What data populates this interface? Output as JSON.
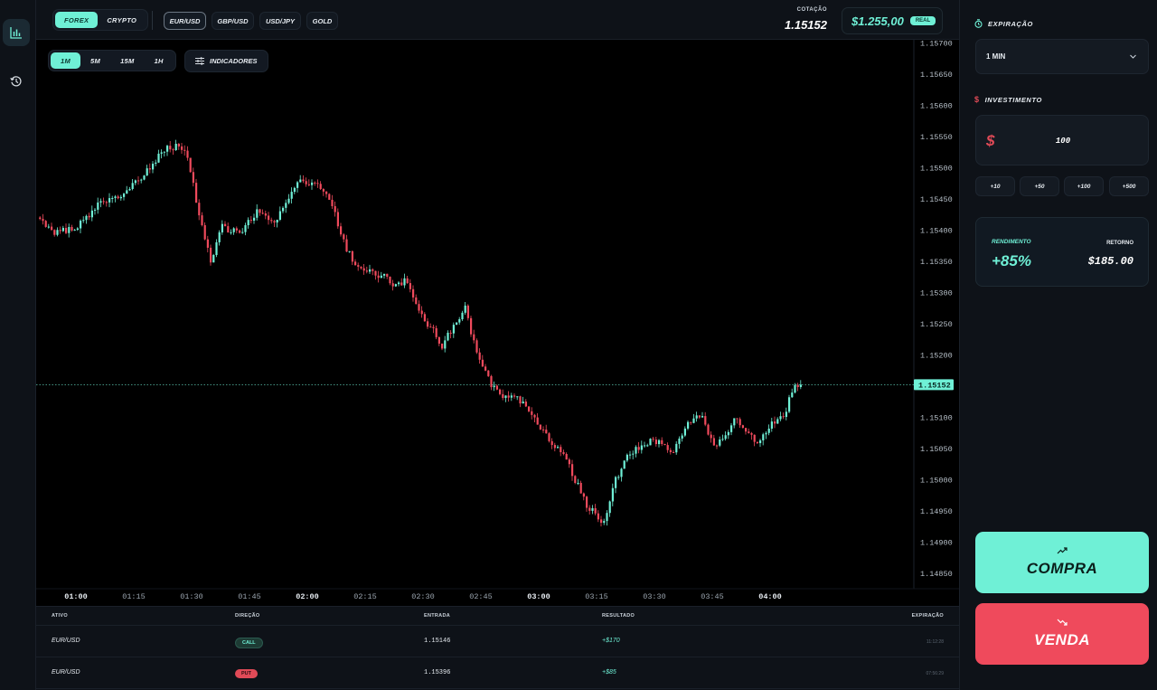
{
  "market_tabs": [
    {
      "label": "FOREX",
      "active": true
    },
    {
      "label": "CRYPTO",
      "active": false
    }
  ],
  "assets": [
    {
      "label": "EUR/USD",
      "active": true
    },
    {
      "label": "GBP/USD",
      "active": false
    },
    {
      "label": "USD/JPY",
      "active": false
    },
    {
      "label": "GOLD",
      "active": false
    }
  ],
  "quote": {
    "label": "COTAÇÃO",
    "value": "1.15152"
  },
  "balance": {
    "value": "$1.255,00",
    "account": "REAL"
  },
  "timeframes": [
    {
      "label": "1M",
      "active": true
    },
    {
      "label": "5M",
      "active": false
    },
    {
      "label": "15M",
      "active": false
    },
    {
      "label": "1H",
      "active": false
    }
  ],
  "indicators_label": "INDICADORES",
  "chart_data": {
    "type": "candlestick",
    "symbol": "EUR/USD",
    "interval": "1M",
    "ylim": [
      1.14825,
      1.15725
    ],
    "y_ticks": [
      "1.15700",
      "1.15650",
      "1.15600",
      "1.15550",
      "1.15500",
      "1.15450",
      "1.15400",
      "1.15350",
      "1.15300",
      "1.15250",
      "1.15200",
      "1.15150",
      "1.15100",
      "1.15050",
      "1.15000",
      "1.14950",
      "1.14900",
      "1.14850"
    ],
    "x_ticks": [
      "01:00",
      "01:15",
      "01:30",
      "01:45",
      "02:00",
      "02:15",
      "02:30",
      "02:45",
      "03:00",
      "03:15",
      "03:30",
      "03:45",
      "04:00"
    ],
    "current_price": "1.15152",
    "close_path": [
      [
        0,
        1.1542
      ],
      [
        6,
        1.15395
      ],
      [
        14,
        1.15405
      ],
      [
        22,
        1.15445
      ],
      [
        30,
        1.15455
      ],
      [
        38,
        1.15495
      ],
      [
        44,
        1.1553
      ],
      [
        48,
        1.15535
      ],
      [
        52,
        1.1552
      ],
      [
        56,
        1.1542
      ],
      [
        60,
        1.1535
      ],
      [
        64,
        1.15405
      ],
      [
        70,
        1.15395
      ],
      [
        76,
        1.1543
      ],
      [
        82,
        1.1541
      ],
      [
        86,
        1.1544
      ],
      [
        90,
        1.1548
      ],
      [
        94,
        1.15475
      ],
      [
        98,
        1.1547
      ],
      [
        102,
        1.1544
      ],
      [
        106,
        1.1538
      ],
      [
        110,
        1.15345
      ],
      [
        116,
        1.1533
      ],
      [
        120,
        1.15325
      ],
      [
        124,
        1.1531
      ],
      [
        128,
        1.1532
      ],
      [
        132,
        1.15265
      ],
      [
        136,
        1.15245
      ],
      [
        140,
        1.15215
      ],
      [
        144,
        1.15245
      ],
      [
        148,
        1.15275
      ],
      [
        152,
        1.152
      ],
      [
        156,
        1.1516
      ],
      [
        160,
        1.15135
      ],
      [
        166,
        1.1513
      ],
      [
        170,
        1.1511
      ],
      [
        174,
        1.1508
      ],
      [
        178,
        1.1506
      ],
      [
        182,
        1.1504
      ],
      [
        186,
        1.15
      ],
      [
        190,
        1.1496
      ],
      [
        194,
        1.1494
      ],
      [
        196,
        1.1493
      ],
      [
        200,
        1.15
      ],
      [
        204,
        1.15035
      ],
      [
        208,
        1.1505
      ],
      [
        212,
        1.1506
      ],
      [
        216,
        1.1506
      ],
      [
        220,
        1.15045
      ],
      [
        222,
        1.1507
      ],
      [
        226,
        1.15095
      ],
      [
        230,
        1.15105
      ],
      [
        234,
        1.1505
      ],
      [
        238,
        1.15075
      ],
      [
        242,
        1.151
      ],
      [
        246,
        1.1507
      ],
      [
        250,
        1.1506
      ],
      [
        254,
        1.1509
      ],
      [
        258,
        1.151
      ],
      [
        262,
        1.15155
      ],
      [
        264,
        1.15152
      ]
    ]
  },
  "table": {
    "headers": {
      "asset": "ATIVO",
      "direction": "DIREÇÃO",
      "entry": "ENTRADA",
      "result": "RESULTADO",
      "expiration": "EXPIRAÇÃO"
    },
    "rows": [
      {
        "asset": "EUR/USD",
        "direction": "CALL",
        "entry": "1.15146",
        "result": "+$170",
        "expiration": "11:12:28"
      },
      {
        "asset": "EUR/USD",
        "direction": "PUT",
        "entry": "1.15396",
        "result": "+$85",
        "expiration": "07:56:29"
      }
    ]
  },
  "panel": {
    "expiration_label": "EXPIRAÇÃO",
    "expiration_value": "1 MIN",
    "investment_label": "INVESTIMENTO",
    "currency_symbol": "$",
    "investment_value": "100",
    "quick_amounts": [
      "+10",
      "+50",
      "+100",
      "+500"
    ],
    "yield_label": "RENDIMENTO",
    "yield_value": "+85%",
    "return_label": "RETORNO",
    "return_value": "$185.00",
    "buy_label": "COMPRA",
    "sell_label": "VENDA"
  },
  "colors": {
    "accent": "#6ff0d6",
    "up": "#6ff0d6",
    "down": "#ef4a5c",
    "background": "#000000"
  },
  "icons": {
    "chart": "bar-chart-icon",
    "history": "history-icon",
    "clock": "timer-icon",
    "dollar": "dollar-icon",
    "buy": "trend-up-icon",
    "sell": "trend-down-icon"
  }
}
